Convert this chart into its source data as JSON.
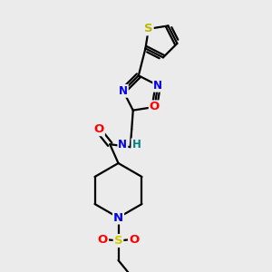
{
  "bg_color": "#ebebeb",
  "bond_color": "#000000",
  "bond_width": 1.6,
  "atom_colors": {
    "S_thio": "#b8b800",
    "S_sulfo": "#cccc00",
    "N": "#0000ee",
    "O": "#ff0000",
    "H": "#008080",
    "C": "#000000"
  },
  "font_size": 8.5
}
